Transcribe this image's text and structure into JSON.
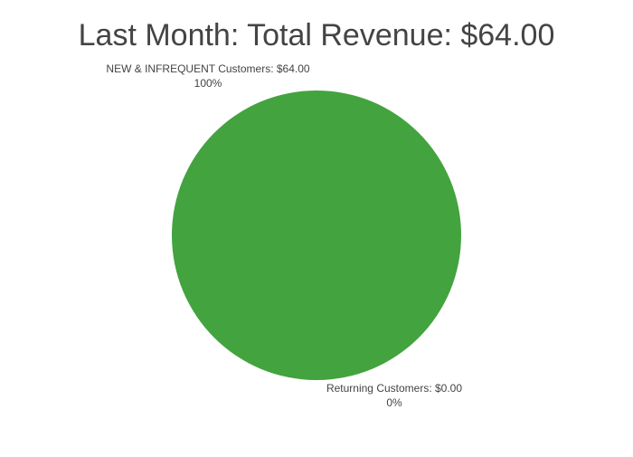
{
  "chart_data": {
    "type": "pie",
    "title": "Last Month: Total Revenue: $64.00",
    "slices": [
      {
        "label": "NEW & INFREQUENT Customers",
        "value_label": "$64.00",
        "value": 64.0,
        "percent_label": "100%",
        "percent": 100,
        "color": "#43a33f"
      },
      {
        "label": "Returning Customers",
        "value_label": "$0.00",
        "value": 0.0,
        "percent_label": "0%",
        "percent": 0,
        "color": "#e0d84a"
      }
    ]
  },
  "colors": {
    "background": "#ffffff",
    "title_text": "#444444",
    "label_text": "#444444"
  }
}
